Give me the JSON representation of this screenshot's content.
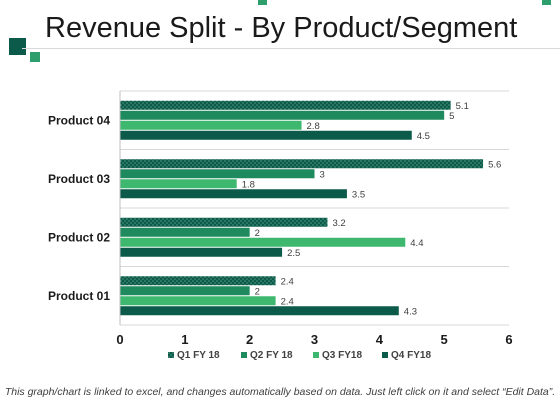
{
  "header": {
    "title": "Revenue Split - By Product/Segment"
  },
  "footnote": "This graph/chart is linked to excel, and changes automatically based on data. Just left click on it and select “Edit Data”.",
  "colors": {
    "q1": "#0b5a4a",
    "q2": "#1f8a5e",
    "q3": "#3fb86f",
    "q4": "#0b5a4a",
    "accent": "#2f9e6d"
  },
  "chart_data": {
    "type": "bar",
    "orientation": "horizontal",
    "categories": [
      "Product 04",
      "Product 03",
      "Product 02",
      "Product 01"
    ],
    "series": [
      {
        "name": "Q1 FY 18",
        "values": [
          5.1,
          5.6,
          3.2,
          2.4
        ],
        "pattern": "dotted"
      },
      {
        "name": "Q2 FY 18",
        "values": [
          5,
          3,
          2,
          2
        ]
      },
      {
        "name": "Q3 FY18",
        "values": [
          2.8,
          1.8,
          4.4,
          2.4
        ]
      },
      {
        "name": "Q4 FY18",
        "values": [
          4.5,
          3.5,
          2.5,
          4.3
        ]
      }
    ],
    "xlim": [
      0,
      6
    ],
    "xticks": [
      "0",
      "1",
      "2",
      "3",
      "4",
      "5",
      "6"
    ],
    "grid": true,
    "legend": "bottom",
    "data_labels": true
  }
}
